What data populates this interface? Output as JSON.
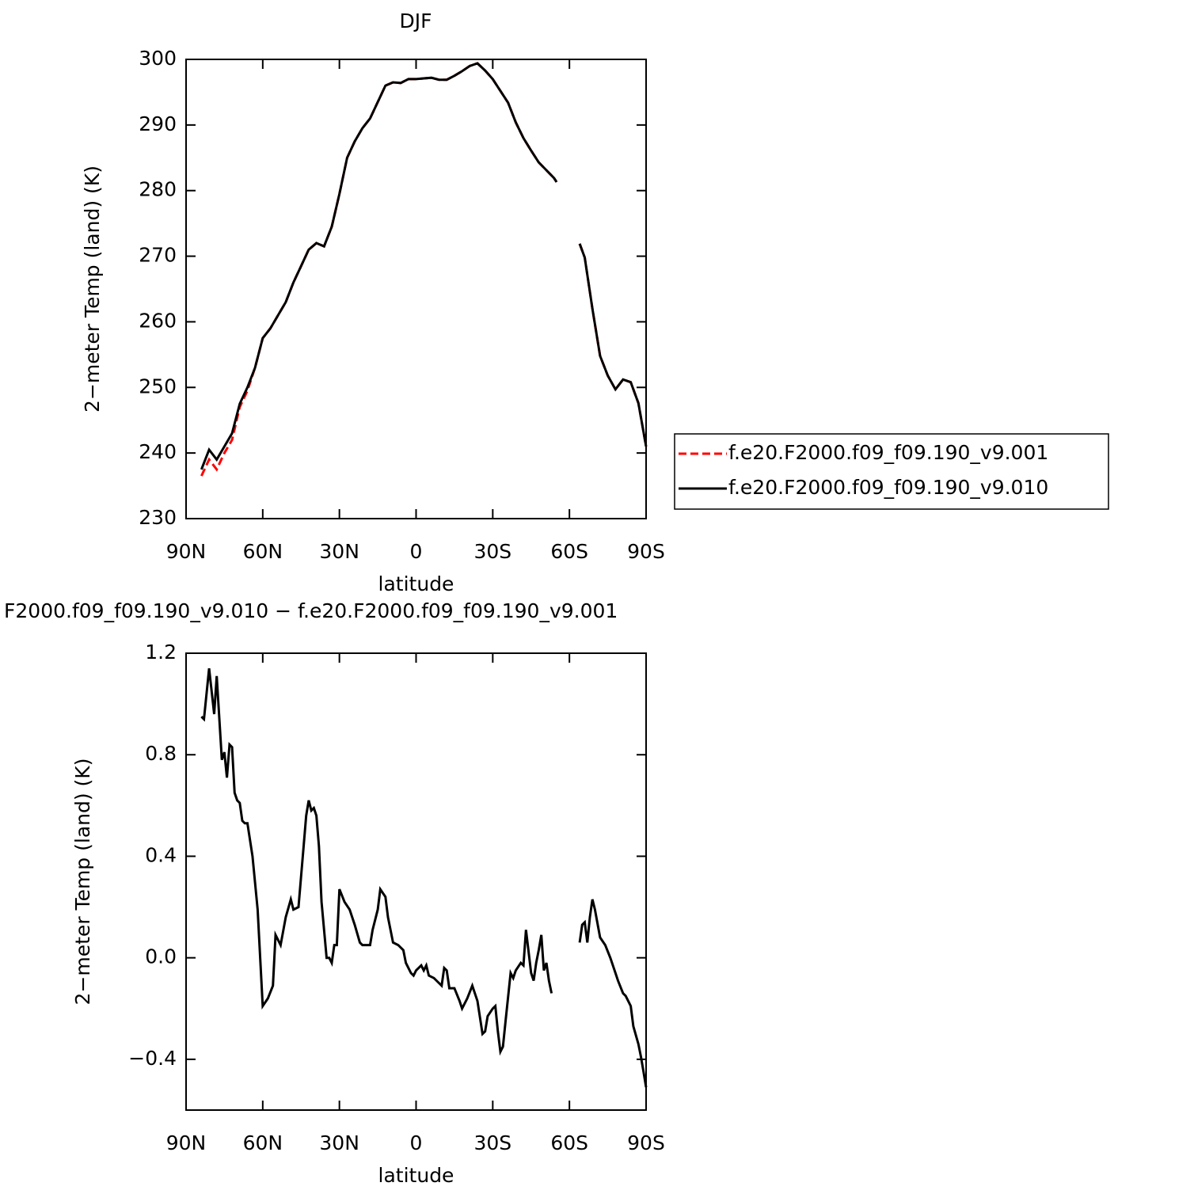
{
  "chart_data": [
    {
      "type": "line",
      "title": "DJF",
      "xlabel": "latitude",
      "ylabel": "2−meter Temp (land) (K)",
      "xlim": [
        90,
        -90
      ],
      "xticks": [
        {
          "value": 90,
          "label": "90N"
        },
        {
          "value": 60,
          "label": "60N"
        },
        {
          "value": 30,
          "label": "30N"
        },
        0,
        {
          "value": -30,
          "label": "30S"
        },
        {
          "value": -60,
          "label": "60S"
        },
        {
          "value": -90,
          "label": "90S"
        }
      ],
      "ylim": [
        230,
        300
      ],
      "yticks": [
        230,
        240,
        250,
        260,
        270,
        280,
        290,
        300
      ],
      "x": [
        84,
        81,
        78,
        75,
        72,
        69,
        66,
        63,
        60,
        57,
        54,
        51,
        48,
        45,
        42,
        39,
        36,
        33,
        30,
        27,
        24,
        21,
        18,
        15,
        12,
        9,
        6,
        3,
        0,
        -3,
        -6,
        -9,
        -12,
        -15,
        -18,
        -21,
        -24,
        -27,
        -30,
        -33,
        -36,
        -39,
        -42,
        -45,
        -48,
        -51,
        -54,
        -55,
        -60,
        -64,
        -66,
        -69,
        -72,
        -75,
        -78,
        -81,
        -84,
        -87,
        -90
      ],
      "series": [
        {
          "name": "f.e20.F2000.f09_f09.190_v9.001",
          "color": "#ff0000",
          "line_style": "dashed",
          "values": [
            236.5,
            239,
            237.5,
            240,
            242,
            247,
            249.5,
            253,
            257.5,
            259,
            261,
            263,
            266,
            268.5,
            271,
            272,
            271.5,
            274.5,
            279.5,
            285,
            287.5,
            289.5,
            291,
            293.5,
            296,
            296.5,
            296.4,
            297,
            297,
            297.1,
            297.2,
            296.9,
            296.9,
            297.5,
            298.2,
            299,
            299.4,
            298.3,
            297,
            295.2,
            293.4,
            290.4,
            288,
            286.1,
            284.3,
            283.1,
            281.9,
            281.3,
            null,
            271.9,
            269.8,
            262,
            254.8,
            251.8,
            249.7,
            251.2,
            250.8,
            247.6,
            241
          ]
        },
        {
          "name": "f.e20.F2000.f09_f09.190_v9.010",
          "color": "#000000",
          "line_style": "solid",
          "values": [
            237.5,
            240.5,
            239,
            241,
            243,
            247.5,
            250,
            253,
            257.5,
            259,
            261,
            263,
            266,
            268.5,
            271,
            272,
            271.5,
            274.5,
            279.5,
            285,
            287.5,
            289.5,
            291,
            293.5,
            296,
            296.5,
            296.4,
            297,
            297,
            297.1,
            297.2,
            296.9,
            296.9,
            297.5,
            298.2,
            299,
            299.4,
            298.3,
            297,
            295.2,
            293.4,
            290.4,
            288,
            286.1,
            284.3,
            283.1,
            281.9,
            281.3,
            null,
            271.9,
            269.8,
            262,
            254.8,
            251.8,
            249.7,
            251.2,
            250.8,
            247.6,
            241
          ]
        }
      ],
      "legend": "right"
    },
    {
      "type": "line",
      "title": "F2000.f09_f09.190_v9.010 − f.e20.F2000.f09_f09.190_v9.001",
      "xlabel": "latitude",
      "ylabel": "2−meter Temp (land) (K)",
      "xlim": [
        90,
        -90
      ],
      "xticks": [
        {
          "value": 90,
          "label": "90N"
        },
        {
          "value": 60,
          "label": "60N"
        },
        {
          "value": 30,
          "label": "30N"
        },
        0,
        {
          "value": -30,
          "label": "30S"
        },
        {
          "value": -60,
          "label": "60S"
        },
        {
          "value": -90,
          "label": "90S"
        }
      ],
      "ylim": [
        -0.6,
        1.2
      ],
      "yticks": [
        {
          "value": -0.4,
          "label": "−0.4"
        },
        {
          "value": 0,
          "label": "0.0"
        },
        0.4,
        0.8,
        1.2
      ],
      "color": "#000000",
      "x": [
        84,
        83,
        81,
        79,
        78,
        76,
        75,
        74,
        73,
        72,
        71,
        70,
        69,
        68,
        67,
        66,
        64,
        62,
        60,
        58,
        56,
        55,
        53,
        51,
        49,
        48,
        46,
        44,
        43,
        42,
        41,
        40,
        39,
        38,
        37,
        35,
        34,
        33,
        32,
        31,
        30,
        28,
        26,
        24,
        22,
        21,
        19,
        18,
        17,
        15,
        14,
        12,
        11,
        9,
        7,
        5,
        4,
        2,
        1,
        0,
        -2,
        -3,
        -4,
        -5,
        -7,
        -8,
        -10,
        -11,
        -12,
        -13,
        -15,
        -17,
        -18,
        -20,
        -22,
        -24,
        -26,
        -27,
        -28,
        -30,
        -31,
        -32,
        -33,
        -34,
        -35,
        -37,
        -38,
        -39,
        -41,
        -42,
        -43,
        -45,
        -46,
        -47,
        -48,
        -49,
        -50,
        -51,
        -52,
        -53,
        -58,
        -64,
        -65,
        -66,
        -67,
        -68,
        -69,
        -70,
        -72,
        -74,
        -76,
        -78,
        -79,
        -81,
        -82,
        -84,
        -85,
        -87,
        -88,
        -89,
        -90
      ],
      "values": [
        0.95,
        0.94,
        1.14,
        0.96,
        1.11,
        0.78,
        0.81,
        0.71,
        0.84,
        0.83,
        0.65,
        0.62,
        0.61,
        0.54,
        0.53,
        0.53,
        0.4,
        0.19,
        -0.19,
        -0.16,
        -0.11,
        0.09,
        0.05,
        0.16,
        0.23,
        0.19,
        0.2,
        0.44,
        0.56,
        0.62,
        0.58,
        0.59,
        0.56,
        0.44,
        0.22,
        0,
        0,
        -0.02,
        0.05,
        0.05,
        0.27,
        0.22,
        0.19,
        0.13,
        0.06,
        0.05,
        0.05,
        0.05,
        0.11,
        0.19,
        0.27,
        0.24,
        0.16,
        0.06,
        0.05,
        0.03,
        -0.02,
        -0.06,
        -0.07,
        -0.05,
        -0.03,
        -0.05,
        -0.03,
        -0.07,
        -0.08,
        -0.09,
        -0.11,
        -0.04,
        -0.05,
        -0.12,
        -0.12,
        -0.17,
        -0.2,
        -0.16,
        -0.11,
        -0.17,
        -0.3,
        -0.29,
        -0.23,
        -0.2,
        -0.19,
        -0.29,
        -0.37,
        -0.35,
        -0.25,
        -0.06,
        -0.08,
        -0.05,
        -0.02,
        -0.03,
        0.11,
        -0.06,
        -0.09,
        -0.02,
        0.03,
        0.09,
        -0.05,
        -0.02,
        -0.09,
        -0.14,
        null,
        0.06,
        0.13,
        0.14,
        0.06,
        0.16,
        0.23,
        0.19,
        0.08,
        0.05,
        0,
        -0.06,
        -0.09,
        -0.14,
        -0.15,
        -0.19,
        -0.27,
        -0.34,
        -0.39,
        -0.45,
        -0.51
      ]
    }
  ]
}
